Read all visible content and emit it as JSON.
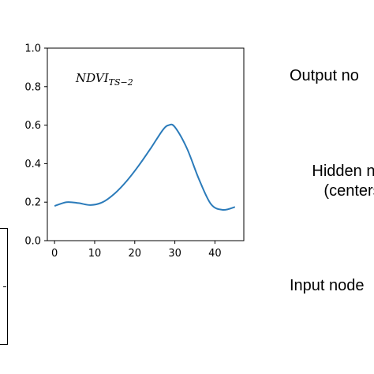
{
  "side_labels": {
    "output": "Output no",
    "hidden": "Hidden no\n  (centers",
    "input": "Input node"
  },
  "chart_data": {
    "type": "line",
    "title": "",
    "xlabel": "",
    "ylabel": "",
    "annotation": {
      "main": "NDVI",
      "sub": "TS−2"
    },
    "xlim": [
      -1.8,
      47.2
    ],
    "ylim": [
      0.0,
      1.0
    ],
    "x_ticks": [
      0,
      10,
      20,
      30,
      40
    ],
    "y_ticks": [
      0.0,
      0.2,
      0.4,
      0.6,
      0.8,
      1.0
    ],
    "x_tick_labels": [
      "0",
      "10",
      "20",
      "30",
      "40"
    ],
    "y_tick_labels": [
      "0.0",
      "0.2",
      "0.4",
      "0.6",
      "0.8",
      "1.0"
    ],
    "series": [
      {
        "color": "#2b7bba",
        "x": [
          0,
          3,
          6,
          9,
          12,
          15,
          18,
          21,
          24,
          27,
          28.5,
          30,
          33,
          36,
          39,
          42,
          45
        ],
        "y": [
          0.18,
          0.2,
          0.195,
          0.185,
          0.2,
          0.245,
          0.31,
          0.39,
          0.48,
          0.575,
          0.6,
          0.59,
          0.48,
          0.32,
          0.19,
          0.16,
          0.175
        ]
      }
    ]
  }
}
